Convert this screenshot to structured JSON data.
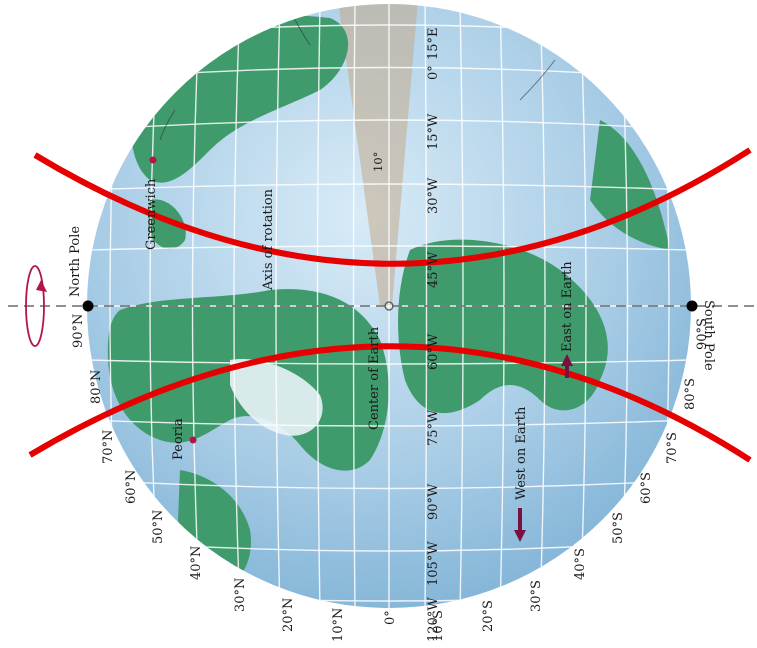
{
  "labels": {
    "north_pole": "North Pole",
    "south_pole": "South Pole",
    "greenwich": "Greenwich",
    "peoria": "Peoria",
    "axis_of_rotation": "Axis of rotation",
    "center_of_earth": "Center of Earth",
    "west_on_earth": "West on Earth",
    "east_on_earth": "East on Earth",
    "tilt_angle": "10°"
  },
  "latitude_labels_north": [
    "90°N",
    "80°N",
    "70°N",
    "60°N",
    "50°N",
    "40°N",
    "30°N",
    "20°N",
    "10°N"
  ],
  "equator_label": "0°",
  "latitude_labels_south": [
    "10°S",
    "20°S",
    "30°S",
    "40°S",
    "50°S",
    "60°S",
    "70°S",
    "80°S",
    "90°S"
  ],
  "longitude_labels": [
    "15°E",
    "0°",
    "15°W",
    "30°W",
    "45°W",
    "60°W",
    "75°W",
    "90°W",
    "105°W",
    "120°W"
  ],
  "colors": {
    "ocean": "#a9cde6",
    "land": "#3f9a6c",
    "grid": "#ffffff",
    "red_curve": "#e60000",
    "marker": "#b2154a",
    "arrow": "#7a1040",
    "tilt_band": "#c4a98a"
  },
  "icons": {
    "rotation_arrow": "circular-arrow-icon"
  }
}
